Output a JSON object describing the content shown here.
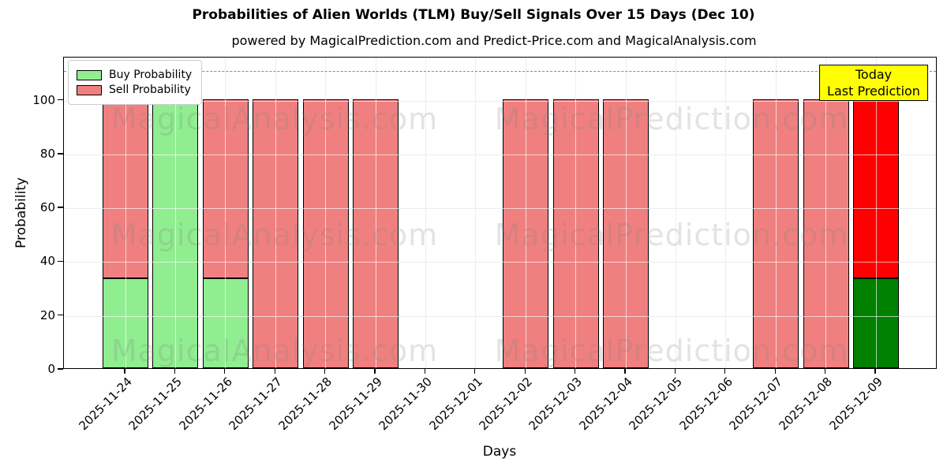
{
  "title": "Probabilities of Alien Worlds (TLM) Buy/Sell Signals Over 15 Days (Dec 10)",
  "subtitle": "powered by MagicalPrediction.com and Predict-Price.com and MagicalAnalysis.com",
  "legend": [
    {
      "label": "Buy Probability",
      "color": "#90EE90"
    },
    {
      "label": "Sell Probability",
      "color": "#F08080"
    }
  ],
  "annotation": {
    "line1": "Today",
    "line2": "Last Prediction",
    "bg_color": "#FFFF00",
    "border_color": "#000000"
  },
  "watermarks": {
    "left_text": "MagicalAnalysis.com",
    "right_text": "MagicalPrediction.com"
  },
  "axes": {
    "xlabel": "Days",
    "ylabel": "Probability",
    "yticks": [
      0,
      20,
      40,
      60,
      80,
      100
    ],
    "ylim": [
      0,
      116
    ],
    "grid": true,
    "grid_color": "#cccccc",
    "dashed_line_y": 111,
    "dashed_line_color": "#8a8a8a"
  },
  "chart_data": {
    "type": "bar",
    "stacked": true,
    "title": "Probabilities of Alien Worlds (TLM) Buy/Sell Signals Over 15 Days (Dec 10)",
    "xlabel": "Days",
    "ylabel": "Probability",
    "categories": [
      "2025-11-24",
      "2025-11-25",
      "2025-11-26",
      "2025-11-27",
      "2025-11-28",
      "2025-11-29",
      "2025-11-30",
      "2025-12-01",
      "2025-12-02",
      "2025-12-03",
      "2025-12-04",
      "2025-12-05",
      "2025-12-06",
      "2025-12-07",
      "2025-12-08",
      "2025-12-09"
    ],
    "series": [
      {
        "name": "Buy Probability",
        "color": "#90EE90",
        "today_color": "#008000",
        "values": [
          33.33,
          100,
          33.33,
          0,
          0,
          0,
          0,
          0,
          0,
          0,
          0,
          0,
          0,
          0,
          0,
          33.33
        ]
      },
      {
        "name": "Sell Probability",
        "color": "#F08080",
        "today_color": "#FF0000",
        "values": [
          66.67,
          0,
          66.67,
          100,
          100,
          100,
          0,
          0,
          100,
          100,
          100,
          0,
          0,
          100,
          100,
          66.67
        ]
      }
    ],
    "today_index": 15,
    "bar_edge_color": "#000000",
    "legend_position": "upper left"
  }
}
